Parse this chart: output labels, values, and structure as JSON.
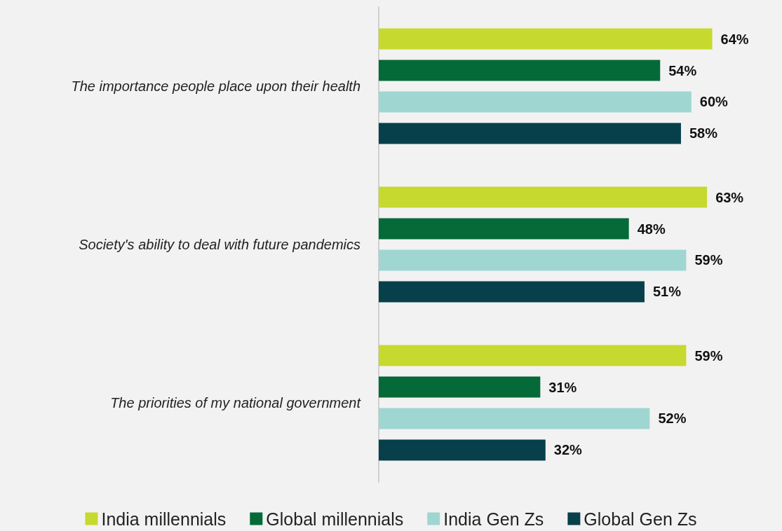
{
  "chart_data": {
    "type": "bar",
    "orientation": "horizontal",
    "categories": [
      "The importance people place upon their health",
      "Society's ability to deal with future pandemics",
      "The priorities of my national government"
    ],
    "series": [
      {
        "name": "India millennials",
        "color": "#c6d92e",
        "values": [
          64,
          63,
          59
        ],
        "value_labels": [
          "64%",
          "63%",
          "59%"
        ]
      },
      {
        "name": "Global millennials",
        "color": "#046a38",
        "values": [
          54,
          48,
          31
        ],
        "value_labels": [
          "54%",
          "48%",
          "31%"
        ]
      },
      {
        "name": "India Gen Zs",
        "color": "#a0d6d2",
        "values": [
          60,
          59,
          52
        ],
        "value_labels": [
          "60%",
          "59%",
          "52%"
        ]
      },
      {
        "name": "Global Gen Zs",
        "color": "#07404b",
        "values": [
          58,
          51,
          32
        ],
        "value_labels": [
          "58%",
          "51%",
          "32%"
        ]
      }
    ],
    "legend": "bottom"
  }
}
